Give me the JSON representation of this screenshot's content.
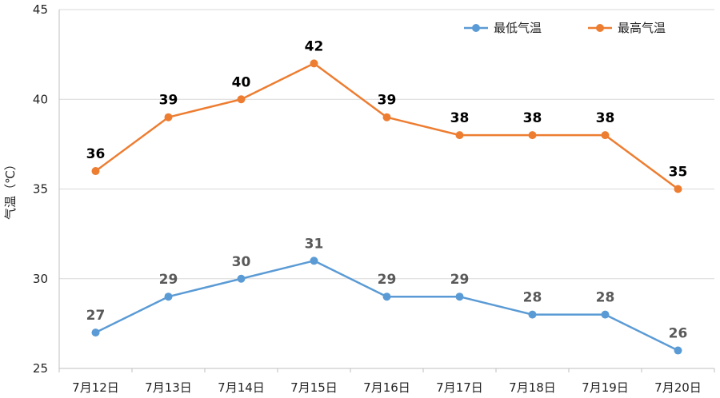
{
  "chart_data": {
    "type": "line",
    "title": "",
    "xlabel": "",
    "ylabel": "气温（℃）",
    "categories": [
      "7月12日",
      "7月13日",
      "7月14日",
      "7月15日",
      "7月16日",
      "7月17日",
      "7月18日",
      "7月19日",
      "7月20日"
    ],
    "ylim": [
      25,
      45
    ],
    "yticks": [
      "25",
      "30",
      "35",
      "40",
      "45"
    ],
    "grid": true,
    "legend_position": "top-right",
    "series": [
      {
        "name": "最低气温",
        "color": "#5b9bd5",
        "label_color": "#595959",
        "values": [
          27,
          29,
          30,
          31,
          29,
          29,
          28,
          28,
          26
        ]
      },
      {
        "name": "最高气温",
        "color": "#ed7d31",
        "label_color": "#000000",
        "values": [
          36,
          39,
          40,
          42,
          39,
          38,
          38,
          38,
          35
        ]
      }
    ]
  }
}
